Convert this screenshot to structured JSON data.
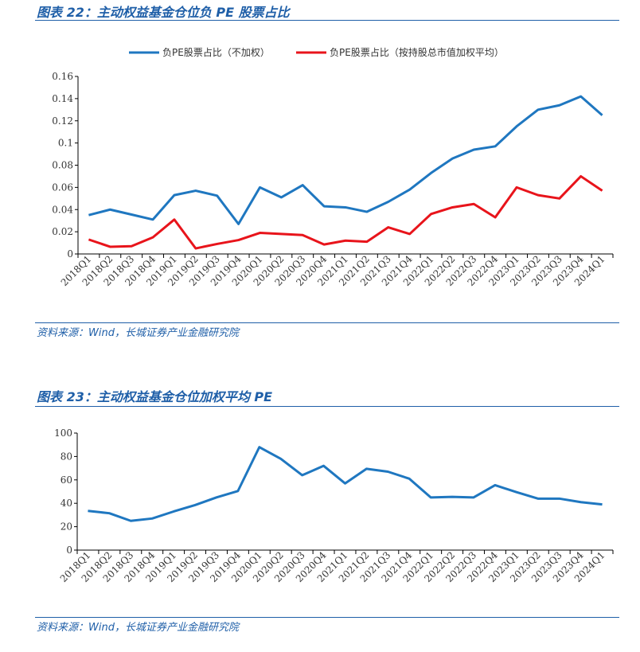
{
  "chart_data": [
    {
      "type": "line",
      "title": "图表 22：主动权益基金仓位负 PE 股票占比",
      "source": "资料来源：Wind，长城证券产业金融研究院",
      "categories": [
        "2018Q1",
        "2018Q2",
        "2018Q3",
        "2018Q4",
        "2019Q1",
        "2019Q2",
        "2019Q3",
        "2019Q4",
        "2020Q1",
        "2020Q2",
        "2020Q3",
        "2020Q4",
        "2021Q1",
        "2021Q2",
        "2021Q3",
        "2021Q4",
        "2022Q1",
        "2022Q2",
        "2022Q3",
        "2022Q4",
        "2023Q1",
        "2023Q2",
        "2023Q3",
        "2023Q4",
        "2024Q1"
      ],
      "ylim": [
        0,
        0.16
      ],
      "yticks": [
        "0",
        "0.02",
        "0.04",
        "0.06",
        "0.08",
        "0.1",
        "0.12",
        "0.14",
        "0.16"
      ],
      "legend": "top",
      "series": [
        {
          "name": "负PE股票占比（不加权）",
          "color": "#1f77c0",
          "values": [
            0.035,
            0.04,
            0.0355,
            0.031,
            0.053,
            0.057,
            0.0525,
            0.027,
            0.06,
            0.051,
            0.062,
            0.043,
            0.042,
            0.038,
            0.047,
            0.058,
            0.073,
            0.086,
            0.094,
            0.097,
            0.115,
            0.13,
            0.134,
            0.142,
            0.125
          ]
        },
        {
          "name": "负PE股票占比（按持股总市值加权平均）",
          "color": "#e8141b",
          "values": [
            0.013,
            0.0065,
            0.007,
            0.015,
            0.031,
            0.005,
            0.009,
            0.0125,
            0.019,
            0.018,
            0.017,
            0.0085,
            0.012,
            0.011,
            0.024,
            0.018,
            0.036,
            0.042,
            0.045,
            0.033,
            0.06,
            0.053,
            0.05,
            0.07,
            0.057
          ]
        }
      ]
    },
    {
      "type": "line",
      "title": "图表 23：主动权益基金仓位加权平均 PE",
      "source": "资料来源：Wind，长城证券产业金融研究院",
      "categories": [
        "2018Q1",
        "2018Q2",
        "2018Q3",
        "2018Q4",
        "2019Q1",
        "2019Q2",
        "2019Q3",
        "2019Q4",
        "2020Q1",
        "2020Q2",
        "2020Q3",
        "2020Q4",
        "2021Q1",
        "2021Q2",
        "2021Q3",
        "2021Q4",
        "2022Q1",
        "2022Q2",
        "2022Q3",
        "2022Q4",
        "2023Q1",
        "2023Q2",
        "2023Q3",
        "2023Q4",
        "2024Q1"
      ],
      "ylim": [
        0,
        100
      ],
      "yticks": [
        "0",
        "20",
        "40",
        "60",
        "80",
        "100"
      ],
      "series": [
        {
          "name": "加权平均PE",
          "color": "#1f77c0",
          "values": [
            33.5,
            31.5,
            25,
            27,
            33,
            38.5,
            45,
            50.5,
            88,
            78,
            64,
            72,
            57,
            69.5,
            67,
            61,
            45,
            45.5,
            45,
            55.5,
            49.5,
            44,
            44,
            41,
            39
          ]
        }
      ]
    }
  ]
}
